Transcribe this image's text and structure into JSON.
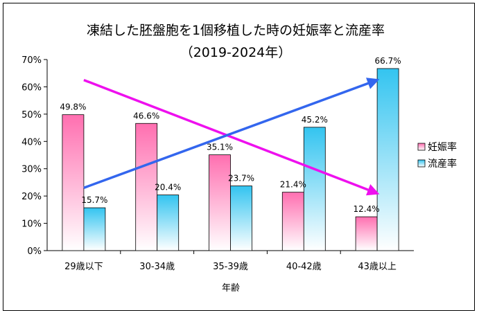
{
  "chart_data": {
    "type": "bar",
    "title": "凍結した胚盤胞を1個移植した時の妊娠率と流産率",
    "subtitle": "（2019-2024年）",
    "xlabel": "年齢",
    "ylabel": "",
    "categories": [
      "29歳以下",
      "30-34歳",
      "35-39歳",
      "40-42歳",
      "43歳以上"
    ],
    "series": [
      {
        "name": "妊娠率",
        "values": [
          49.8,
          46.6,
          35.1,
          21.4,
          12.4
        ],
        "labels": [
          "49.8%",
          "46.6%",
          "35.1%",
          "21.4%",
          "12.4%"
        ],
        "color": "#ff6fb0"
      },
      {
        "name": "流産率",
        "values": [
          15.7,
          20.4,
          23.7,
          45.2,
          66.7
        ],
        "labels": [
          "15.7%",
          "20.4%",
          "23.7%",
          "45.2%",
          "66.7%"
        ],
        "color": "#33c4f0"
      }
    ],
    "yticks": [
      "0%",
      "10%",
      "20%",
      "30%",
      "40%",
      "50%",
      "60%",
      "70%"
    ],
    "ylim": [
      0,
      70
    ],
    "legend_position": "right",
    "trend_arrows": [
      {
        "name": "妊娠率 trend",
        "color": "#ee10ee",
        "from": [
          0,
          62.5
        ],
        "to": [
          4,
          21
        ]
      },
      {
        "name": "流産率 trend",
        "color": "#3366ee",
        "from": [
          0,
          23
        ],
        "to": [
          4,
          62.5
        ]
      }
    ]
  }
}
